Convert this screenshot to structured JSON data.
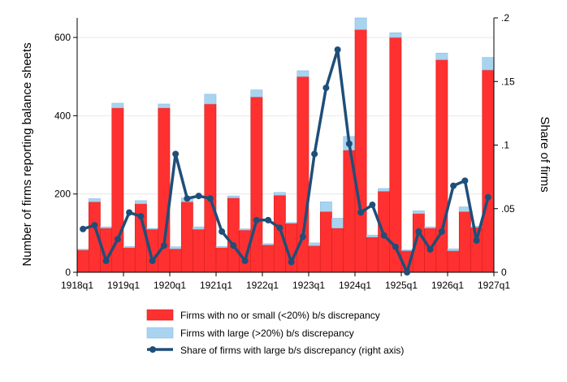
{
  "chart_data": {
    "type": "bar",
    "stacked": true,
    "title": "",
    "xlabel": "",
    "ylabel": "Number of firms reporting balance sheets",
    "y2label": "Share of firms",
    "ylim": [
      0,
      650
    ],
    "y2lim": [
      0,
      0.2
    ],
    "yticks": [
      0,
      200,
      400,
      600
    ],
    "y2ticks": [
      0,
      0.05,
      0.1,
      0.15,
      0.2
    ],
    "y2tick_labels": [
      "0",
      ".05",
      ".1",
      ".15",
      ".2"
    ],
    "x_tick_labels": [
      "1918q1",
      "1919q1",
      "1920q1",
      "1921q1",
      "1922q1",
      "1923q1",
      "1924q1",
      "1925q1",
      "1926q1",
      "1927q1"
    ],
    "categories": [
      "1918q1",
      "1918q2",
      "1918q3",
      "1918q4",
      "1919q1",
      "1919q2",
      "1919q3",
      "1919q4",
      "1920q1",
      "1920q2",
      "1920q3",
      "1920q4",
      "1921q1",
      "1921q2",
      "1921q3",
      "1921q4",
      "1922q1",
      "1922q2",
      "1922q3",
      "1922q4",
      "1923q1",
      "1923q2",
      "1923q3",
      "1923q4",
      "1924q1",
      "1924q2",
      "1924q3",
      "1924q4",
      "1925q1",
      "1925q2",
      "1925q3",
      "1925q4",
      "1926q1",
      "1926q2",
      "1926q3",
      "1926q4"
    ],
    "series": [
      {
        "name": "Firms with no or small (<20%) b/s discrepancy",
        "color": "#ff3030",
        "values": [
          57,
          180,
          113,
          420,
          63,
          175,
          110,
          420,
          60,
          180,
          110,
          430,
          63,
          190,
          108,
          448,
          70,
          197,
          125,
          500,
          68,
          155,
          113,
          312,
          620,
          90,
          207,
          600,
          55,
          150,
          113,
          543,
          55,
          155,
          115,
          517
        ]
      },
      {
        "name": "Firms with large (>20%) b/s discrepancy",
        "color": "#a8d4f0",
        "values": [
          2,
          8,
          3,
          12,
          3,
          8,
          2,
          10,
          5,
          10,
          6,
          25,
          3,
          5,
          3,
          18,
          3,
          7,
          2,
          15,
          7,
          25,
          25,
          35,
          30,
          5,
          7,
          12,
          2,
          7,
          3,
          17,
          5,
          12,
          3,
          32
        ]
      },
      {
        "name": "Share of firms with large b/s discrepancy (right axis)",
        "color": "#1f4e79",
        "axis": "right",
        "values": [
          0.034,
          0.037,
          0.009,
          0.026,
          0.047,
          0.044,
          0.009,
          0.021,
          0.093,
          0.058,
          0.06,
          0.058,
          0.032,
          0.021,
          0.009,
          0.041,
          0.041,
          0.035,
          0.008,
          0.028,
          0.093,
          0.145,
          0.175,
          0.101,
          0.047,
          0.053,
          0.029,
          0.02,
          0.0,
          0.032,
          0.018,
          0.032,
          0.068,
          0.072,
          0.025,
          0.059
        ]
      }
    ],
    "legend": {
      "placement": "bottom",
      "items": [
        "Firms with no or small (<20%) b/s discrepancy",
        "Firms with large (>20%) b/s discrepancy",
        "Share of firms with large b/s discrepancy (right axis)"
      ]
    }
  }
}
